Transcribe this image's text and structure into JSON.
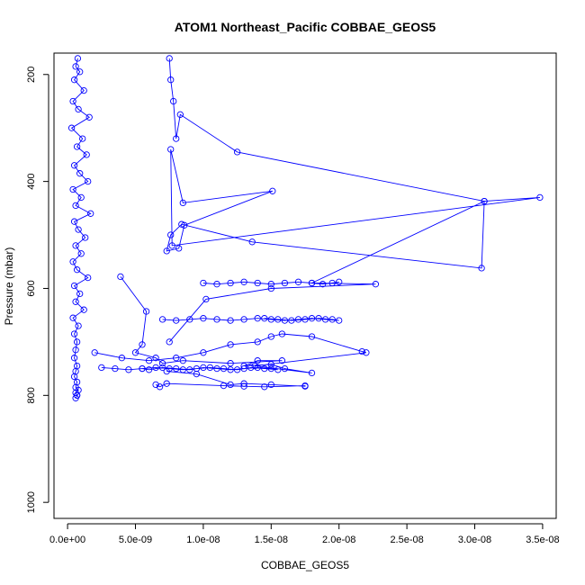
{
  "chart_data": {
    "type": "line",
    "title": "ATOM1 Northeast_Pacific COBBAE_GEOS5",
    "xlabel": "COBBAE_GEOS5",
    "ylabel": "Pressure (mbar)",
    "xlim": [
      -1e-09,
      3.6e-08
    ],
    "ylim": [
      1030,
      160
    ],
    "y_reversed": true,
    "x_ticks": [
      0,
      5e-09,
      1e-08,
      1.5e-08,
      2e-08,
      2.5e-08,
      3e-08,
      3.5e-08
    ],
    "x_tick_labels": [
      "0.0e+00",
      "5.0e-09",
      "1.0e-08",
      "1.5e-08",
      "2.0e-08",
      "2.5e-08",
      "3.0e-08",
      "3.5e-08"
    ],
    "y_ticks": [
      200,
      400,
      600,
      800,
      1000
    ],
    "y_tick_labels": [
      "200",
      "400",
      "600",
      "800",
      "1000"
    ],
    "grid": false,
    "series_color": "#0000ff",
    "series": [
      {
        "x": [
          7.5e-10,
          6e-10,
          9e-10,
          5e-10,
          1.2e-09,
          4e-10,
          8e-10,
          1.6e-09,
          3e-10,
          1.1e-09,
          7e-10,
          1.4e-09,
          5e-10,
          9e-10,
          1.5e-09,
          4e-10,
          1e-09,
          6e-10,
          1.7e-09,
          5e-10,
          8e-10,
          1.3e-09,
          6e-10,
          1e-09,
          4e-10,
          7e-10,
          1.5e-09,
          5e-10,
          9e-10,
          6e-10,
          1.2e-09,
          4e-10,
          8e-10,
          5e-10,
          7e-10,
          6e-10,
          5e-10,
          7e-10,
          6e-10,
          5e-10,
          7e-10,
          6e-10,
          8e-10,
          6e-10,
          7e-10,
          6e-10,
          7e-10
        ],
        "y": [
          170,
          185,
          195,
          210,
          230,
          250,
          265,
          280,
          300,
          320,
          335,
          350,
          370,
          385,
          400,
          415,
          430,
          445,
          460,
          475,
          490,
          505,
          520,
          535,
          550,
          565,
          580,
          595,
          610,
          625,
          640,
          655,
          670,
          685,
          700,
          715,
          730,
          745,
          755,
          765,
          775,
          785,
          790,
          795,
          800,
          805,
          800
        ]
      },
      {
        "x": [
          7.5e-09,
          7.6e-09,
          7.8e-09,
          8e-09,
          8.3e-09,
          1.25e-08,
          3.07e-08,
          3.48e-08,
          7.7e-09,
          7.6e-09,
          8.5e-09,
          1.51e-08,
          8.6e-09,
          8.2e-09,
          7.3e-09,
          7.6e-09,
          8.4e-09,
          1.36e-08,
          3.05e-08,
          3.07e-08,
          1.8e-08,
          2.27e-08,
          1.5e-08,
          1.02e-08,
          7.5e-09
        ],
        "y": [
          170,
          210,
          250,
          320,
          275,
          345,
          437,
          430,
          520,
          340,
          440,
          418,
          482,
          525,
          530,
          500,
          480,
          513,
          562,
          437,
          590,
          592,
          600,
          620,
          700
        ]
      },
      {
        "x": [
          3.9e-09,
          5.8e-09,
          5.5e-09,
          5e-09,
          6.5e-09,
          7e-09,
          8.5e-09,
          1.2e-08,
          1.58e-08,
          1.4e-08,
          1.3e-08,
          1.5e-08,
          1.6e-08,
          1.8e-08,
          1.38e-08,
          2.2e-08,
          2.17e-08,
          1.8e-08,
          1.58e-08,
          1.5e-08,
          1.4e-08,
          1.2e-08,
          1e-08,
          8e-09,
          6e-09,
          4e-09,
          2e-09
        ],
        "y": [
          578,
          643,
          705,
          720,
          730,
          740,
          735,
          740,
          735,
          735,
          745,
          742,
          750,
          758,
          745,
          720,
          718,
          690,
          685,
          690,
          700,
          705,
          720,
          730,
          735,
          730,
          720
        ]
      },
      {
        "x": [
          5.5e-09,
          6e-09,
          7e-09,
          8e-09,
          9e-09,
          1e-08,
          1.1e-08,
          1.2e-08,
          1.3e-08,
          1.4e-08,
          1.5e-08,
          1.55e-08,
          1.45e-08,
          1.35e-08,
          1.25e-08,
          1.15e-08,
          1.05e-08,
          9.5e-09,
          8.5e-09,
          7.5e-09,
          6.5e-09,
          5.5e-09,
          4.5e-09,
          3.5e-09,
          2.5e-09
        ],
        "y": [
          750,
          752,
          748,
          750,
          752,
          748,
          750,
          752,
          750,
          748,
          750,
          752,
          750,
          748,
          752,
          750,
          748,
          750,
          752,
          750,
          748,
          750,
          752,
          750,
          748
        ]
      },
      {
        "x": [
          7e-09,
          8e-09,
          9e-09,
          1e-08,
          1.1e-08,
          1.2e-08,
          1.3e-08,
          1.4e-08,
          1.5e-08,
          1.6e-08,
          1.7e-08,
          1.8e-08,
          1.9e-08,
          2e-08,
          1.95e-08,
          1.85e-08,
          1.75e-08,
          1.65e-08,
          1.55e-08,
          1.45e-08
        ],
        "y": [
          658,
          660,
          658,
          656,
          658,
          660,
          658,
          656,
          658,
          660,
          658,
          656,
          658,
          660,
          658,
          656,
          658,
          660,
          658,
          656
        ]
      },
      {
        "x": [
          6.5e-09,
          6.8e-09,
          7.3e-09,
          1.15e-08,
          1.3e-08,
          1.45e-08,
          1.75e-08,
          1.75e-08,
          1.5e-08,
          1.3e-08,
          1.2e-08,
          9.5e-09,
          7.3e-09
        ],
        "y": [
          780,
          784,
          778,
          782,
          783,
          784,
          782,
          783,
          780,
          778,
          780,
          760,
          755
        ]
      },
      {
        "x": [
          1e-08,
          1.1e-08,
          1.2e-08,
          1.3e-08,
          1.4e-08,
          1.5e-08,
          1.6e-08,
          1.7e-08,
          1.8e-08,
          1.88e-08,
          1.95e-08,
          2e-08
        ],
        "y": [
          590,
          592,
          590,
          588,
          590,
          592,
          590,
          588,
          590,
          592,
          590,
          588
        ]
      }
    ]
  }
}
